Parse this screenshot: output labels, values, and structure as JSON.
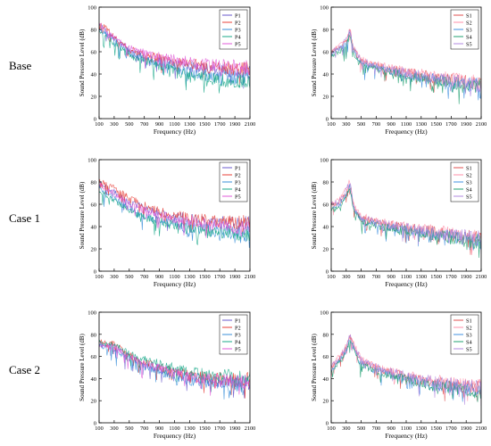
{
  "row_labels": [
    "Base",
    "Case 1",
    "Case 2"
  ],
  "colors": {
    "P1": "#6a5acd",
    "P2": "#e8403a",
    "P3": "#3a8fd9",
    "P4": "#1aa88a",
    "P5": "#e05ad8",
    "S1": "#e05050",
    "S2": "#ff8fa8",
    "S3": "#4090e0",
    "S4": "#20a070",
    "S5": "#b088e0"
  },
  "chart_data": [
    {
      "type": "line",
      "row": "Base",
      "column": "P",
      "xlabel": "Frequency (Hz)",
      "ylabel": "Sound Pressure Level (dB)",
      "xlim": [
        100,
        2100
      ],
      "ylim": [
        0,
        100
      ],
      "xticks": [
        100,
        300,
        500,
        700,
        900,
        1100,
        1300,
        1500,
        1700,
        1900,
        2100
      ],
      "yticks": [
        0,
        20,
        40,
        60,
        80,
        100
      ],
      "legend_position": "top-right",
      "x": [
        100,
        300,
        500,
        700,
        900,
        1100,
        1300,
        1500,
        1700,
        1900,
        2100
      ],
      "series": [
        {
          "name": "P1",
          "values": [
            85,
            72,
            62,
            57,
            53,
            50,
            48,
            46,
            45,
            44,
            44
          ]
        },
        {
          "name": "P2",
          "values": [
            88,
            74,
            63,
            58,
            55,
            52,
            50,
            48,
            47,
            46,
            46
          ]
        },
        {
          "name": "P3",
          "values": [
            82,
            70,
            60,
            54,
            50,
            46,
            42,
            40,
            39,
            38,
            38
          ]
        },
        {
          "name": "P4",
          "values": [
            80,
            68,
            58,
            52,
            48,
            44,
            40,
            38,
            36,
            35,
            35
          ]
        },
        {
          "name": "P5",
          "values": [
            86,
            73,
            64,
            60,
            57,
            54,
            52,
            50,
            49,
            48,
            48
          ]
        }
      ]
    },
    {
      "type": "line",
      "row": "Base",
      "column": "S",
      "xlabel": "Frequency (Hz)",
      "ylabel": "Sound Pressure Level (dB)",
      "xlim": [
        100,
        2100
      ],
      "ylim": [
        0,
        100
      ],
      "xticks": [
        100,
        300,
        500,
        700,
        900,
        1100,
        1300,
        1500,
        1700,
        1900,
        2100
      ],
      "yticks": [
        0,
        20,
        40,
        60,
        80,
        100
      ],
      "legend_position": "top-right",
      "x": [
        100,
        200,
        300,
        350,
        400,
        500,
        700,
        900,
        1100,
        1300,
        1500,
        1700,
        1900,
        2100
      ],
      "series": [
        {
          "name": "S1",
          "values": [
            60,
            64,
            70,
            80,
            62,
            52,
            48,
            45,
            42,
            40,
            38,
            36,
            34,
            33
          ]
        },
        {
          "name": "S2",
          "values": [
            62,
            65,
            72,
            82,
            64,
            54,
            49,
            46,
            43,
            41,
            39,
            37,
            35,
            34
          ]
        },
        {
          "name": "S3",
          "values": [
            58,
            62,
            68,
            78,
            60,
            50,
            46,
            43,
            40,
            38,
            36,
            34,
            32,
            31
          ]
        },
        {
          "name": "S4",
          "values": [
            56,
            60,
            66,
            76,
            58,
            49,
            45,
            42,
            39,
            37,
            35,
            33,
            31,
            30
          ]
        },
        {
          "name": "S5",
          "values": [
            61,
            64,
            71,
            81,
            63,
            53,
            48,
            45,
            42,
            40,
            37,
            35,
            33,
            32
          ]
        }
      ]
    },
    {
      "type": "line",
      "row": "Case 1",
      "column": "P",
      "xlabel": "Frequency (Hz)",
      "ylabel": "Sound Pressure Level (dB)",
      "xlim": [
        100,
        2100
      ],
      "ylim": [
        0,
        100
      ],
      "xticks": [
        100,
        300,
        500,
        700,
        900,
        1100,
        1300,
        1500,
        1700,
        1900,
        2100
      ],
      "yticks": [
        0,
        20,
        40,
        60,
        80,
        100
      ],
      "legend_position": "top-right",
      "x": [
        100,
        300,
        500,
        700,
        900,
        1100,
        1300,
        1500,
        1700,
        1900,
        2100
      ],
      "series": [
        {
          "name": "P1",
          "values": [
            80,
            72,
            63,
            57,
            53,
            50,
            48,
            46,
            45,
            44,
            44
          ]
        },
        {
          "name": "P2",
          "values": [
            82,
            75,
            66,
            60,
            56,
            52,
            49,
            47,
            46,
            45,
            45
          ]
        },
        {
          "name": "P3",
          "values": [
            75,
            66,
            57,
            50,
            46,
            43,
            40,
            38,
            37,
            36,
            36
          ]
        },
        {
          "name": "P4",
          "values": [
            73,
            64,
            55,
            49,
            45,
            42,
            39,
            37,
            36,
            35,
            35
          ]
        },
        {
          "name": "P5",
          "values": [
            78,
            70,
            61,
            55,
            51,
            48,
            45,
            43,
            42,
            41,
            41
          ]
        }
      ]
    },
    {
      "type": "line",
      "row": "Case 1",
      "column": "S",
      "xlabel": "Frequency (Hz)",
      "ylabel": "Sound Pressure Level (dB)",
      "xlim": [
        100,
        2100
      ],
      "ylim": [
        0,
        100
      ],
      "xticks": [
        100,
        300,
        500,
        700,
        900,
        1100,
        1300,
        1500,
        1700,
        1900,
        2100
      ],
      "yticks": [
        0,
        20,
        40,
        60,
        80,
        100
      ],
      "legend_position": "top-right",
      "x": [
        100,
        200,
        300,
        350,
        400,
        500,
        700,
        900,
        1100,
        1300,
        1500,
        1700,
        1900,
        2100
      ],
      "series": [
        {
          "name": "S1",
          "values": [
            60,
            62,
            72,
            80,
            58,
            48,
            45,
            42,
            40,
            38,
            36,
            34,
            32,
            31
          ]
        },
        {
          "name": "S2",
          "values": [
            62,
            64,
            74,
            82,
            60,
            50,
            46,
            43,
            41,
            39,
            37,
            35,
            33,
            32
          ]
        },
        {
          "name": "S3",
          "values": [
            57,
            60,
            70,
            77,
            56,
            46,
            43,
            40,
            38,
            36,
            34,
            32,
            30,
            29
          ]
        },
        {
          "name": "S4",
          "values": [
            55,
            58,
            68,
            75,
            55,
            45,
            42,
            39,
            37,
            35,
            33,
            31,
            29,
            28
          ]
        },
        {
          "name": "S5",
          "values": [
            61,
            63,
            73,
            81,
            59,
            49,
            45,
            42,
            40,
            38,
            36,
            34,
            32,
            31
          ]
        }
      ]
    },
    {
      "type": "line",
      "row": "Case 2",
      "column": "P",
      "xlabel": "Frequency (Hz)",
      "ylabel": "Sound Pressure Level (dB)",
      "xlim": [
        100,
        2100
      ],
      "ylim": [
        0,
        100
      ],
      "xticks": [
        100,
        300,
        500,
        700,
        900,
        1100,
        1300,
        1500,
        1700,
        1900,
        2100
      ],
      "yticks": [
        0,
        20,
        40,
        60,
        80,
        100
      ],
      "legend_position": "top-right",
      "x": [
        100,
        300,
        500,
        700,
        900,
        1100,
        1300,
        1500,
        1700,
        1900,
        2100
      ],
      "series": [
        {
          "name": "P1",
          "values": [
            72,
            70,
            60,
            54,
            50,
            46,
            42,
            40,
            39,
            38,
            38
          ]
        },
        {
          "name": "P2",
          "values": [
            74,
            72,
            62,
            56,
            51,
            47,
            44,
            42,
            41,
            40,
            40
          ]
        },
        {
          "name": "P3",
          "values": [
            70,
            67,
            58,
            52,
            47,
            43,
            40,
            38,
            37,
            36,
            36
          ]
        },
        {
          "name": "P4",
          "values": [
            73,
            71,
            63,
            58,
            54,
            50,
            47,
            45,
            44,
            43,
            43
          ]
        },
        {
          "name": "P5",
          "values": [
            71,
            69,
            60,
            54,
            50,
            46,
            43,
            41,
            40,
            39,
            39
          ]
        }
      ]
    },
    {
      "type": "line",
      "row": "Case 2",
      "column": "S",
      "xlabel": "Frequency (Hz)",
      "ylabel": "Sound Pressure Level (dB)",
      "xlim": [
        100,
        2100
      ],
      "ylim": [
        0,
        100
      ],
      "xticks": [
        100,
        300,
        500,
        700,
        900,
        1100,
        1300,
        1500,
        1700,
        1900,
        2100
      ],
      "yticks": [
        0,
        20,
        40,
        60,
        80,
        100
      ],
      "legend_position": "top-right",
      "x": [
        100,
        200,
        300,
        350,
        400,
        500,
        700,
        900,
        1100,
        1300,
        1500,
        1700,
        1900,
        2100
      ],
      "series": [
        {
          "name": "S1",
          "values": [
            50,
            58,
            68,
            78,
            70,
            56,
            50,
            46,
            43,
            40,
            38,
            36,
            34,
            33
          ]
        },
        {
          "name": "S2",
          "values": [
            52,
            60,
            70,
            80,
            72,
            58,
            52,
            48,
            44,
            41,
            39,
            37,
            35,
            34
          ]
        },
        {
          "name": "S3",
          "values": [
            48,
            56,
            66,
            76,
            68,
            54,
            48,
            44,
            41,
            38,
            36,
            34,
            32,
            31
          ]
        },
        {
          "name": "S4",
          "values": [
            47,
            55,
            65,
            75,
            67,
            53,
            47,
            43,
            40,
            37,
            35,
            33,
            31,
            30
          ]
        },
        {
          "name": "S5",
          "values": [
            51,
            59,
            69,
            79,
            71,
            57,
            51,
            47,
            43,
            40,
            38,
            36,
            34,
            33
          ]
        }
      ]
    }
  ]
}
